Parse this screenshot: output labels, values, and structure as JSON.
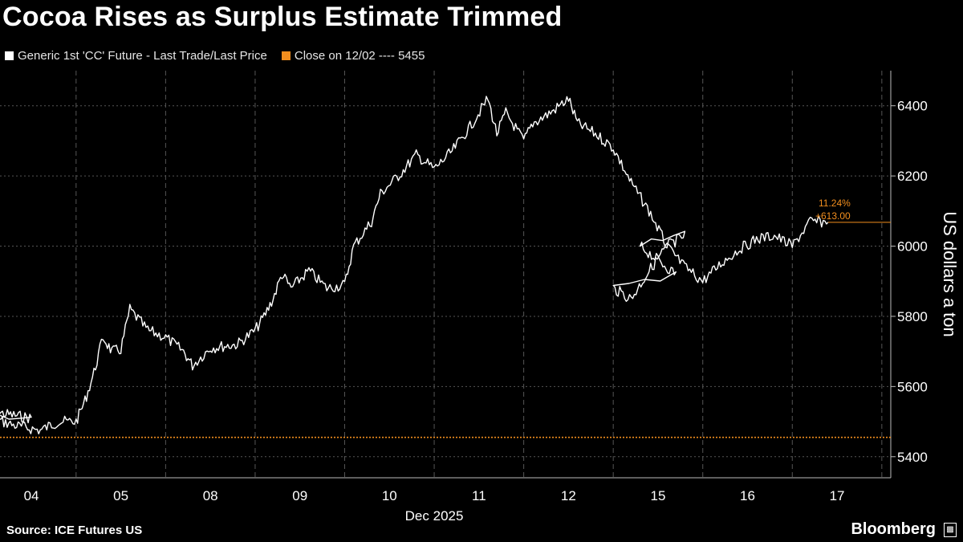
{
  "header": {
    "title": "Cocoa Rises as Surplus Estimate Trimmed"
  },
  "legend": {
    "series_label": "Generic 1st 'CC' Future - Last Trade/Last Price",
    "series_color": "#ffffff",
    "close_label": "Close on 12/02 ---- 5455",
    "close_color": "#f28e1e"
  },
  "footer": {
    "source": "Source: ICE Futures US",
    "brand": "Bloomberg"
  },
  "chart_data": {
    "type": "line",
    "title": "Cocoa Rises as Surplus Estimate Trimmed",
    "xlabel": "Dec 2025",
    "ylabel": "US dollars a ton",
    "x_ticks": [
      "04",
      "05",
      "08",
      "09",
      "10",
      "11",
      "12",
      "15",
      "16",
      "17"
    ],
    "y_ticks": [
      5400,
      5600,
      5800,
      6000,
      6200,
      6400
    ],
    "ylim": [
      5340,
      6500
    ],
    "grid": true,
    "legend_position": "top-left",
    "reference_line": {
      "label": "Close on 12/02",
      "value": 5455
    },
    "annotation": {
      "pct_change": "11.24%",
      "abs_change": "+613.00",
      "value": 6068
    },
    "series": [
      {
        "name": "Generic 1st 'CC' Future - Last Trade/Last Price",
        "color": "#ffffff",
        "points": [
          [
            "03",
            5530
          ],
          [
            "03.5",
            5510
          ],
          [
            "04",
            5515
          ],
          [
            "04.3",
            5490
          ],
          [
            "04.6",
            5475
          ],
          [
            "04.8",
            5500
          ],
          [
            "05",
            5500
          ],
          [
            "05.1",
            5560
          ],
          [
            "05.2",
            5640
          ],
          [
            "05.3",
            5740
          ],
          [
            "05.4",
            5700
          ],
          [
            "05.5",
            5705
          ],
          [
            "05.6",
            5820
          ],
          [
            "05.8",
            5760
          ],
          [
            "08",
            5740
          ],
          [
            "08.2",
            5700
          ],
          [
            "08.3",
            5660
          ],
          [
            "08.5",
            5710
          ],
          [
            "08.8",
            5720
          ],
          [
            "09",
            5760
          ],
          [
            "09.1",
            5800
          ],
          [
            "09.2",
            5850
          ],
          [
            "09.3",
            5920
          ],
          [
            "09.4",
            5880
          ],
          [
            "09.6",
            5930
          ],
          [
            "09.8",
            5880
          ],
          [
            "10",
            5890
          ],
          [
            "10.1",
            6000
          ],
          [
            "10.3",
            6070
          ],
          [
            "10.4",
            6150
          ],
          [
            "10.6",
            6200
          ],
          [
            "10.8",
            6260
          ],
          [
            "11",
            6220
          ],
          [
            "11.2",
            6270
          ],
          [
            "11.4",
            6340
          ],
          [
            "11.6",
            6420
          ],
          [
            "11.7",
            6320
          ],
          [
            "11.8",
            6380
          ],
          [
            "12",
            6300
          ],
          [
            "12.1",
            6350
          ],
          [
            "12.3",
            6380
          ],
          [
            "12.5",
            6420
          ],
          [
            "12.6",
            6350
          ],
          [
            "12.8",
            6320
          ],
          [
            "13",
            6280
          ],
          [
            "13.2",
            6180
          ],
          [
            "13.4",
            6100
          ],
          [
            "13.6",
            6000
          ],
          [
            "13.8",
            6030
          ],
          [
            "14",
            6000
          ],
          [
            "14.2",
            5960
          ],
          [
            "14.4",
            5920
          ],
          [
            "15",
            5880
          ],
          [
            "15.2",
            5850
          ],
          [
            "15.4",
            5930
          ],
          [
            "15.6",
            6000
          ],
          [
            "15.8",
            5940
          ],
          [
            "16",
            5900
          ],
          [
            "16.2",
            5950
          ],
          [
            "16.4",
            5990
          ],
          [
            "16.6",
            6020
          ],
          [
            "16.8",
            6030
          ],
          [
            "17",
            6000
          ],
          [
            "17.2",
            6070
          ],
          [
            "17.4",
            6068
          ]
        ]
      }
    ]
  }
}
